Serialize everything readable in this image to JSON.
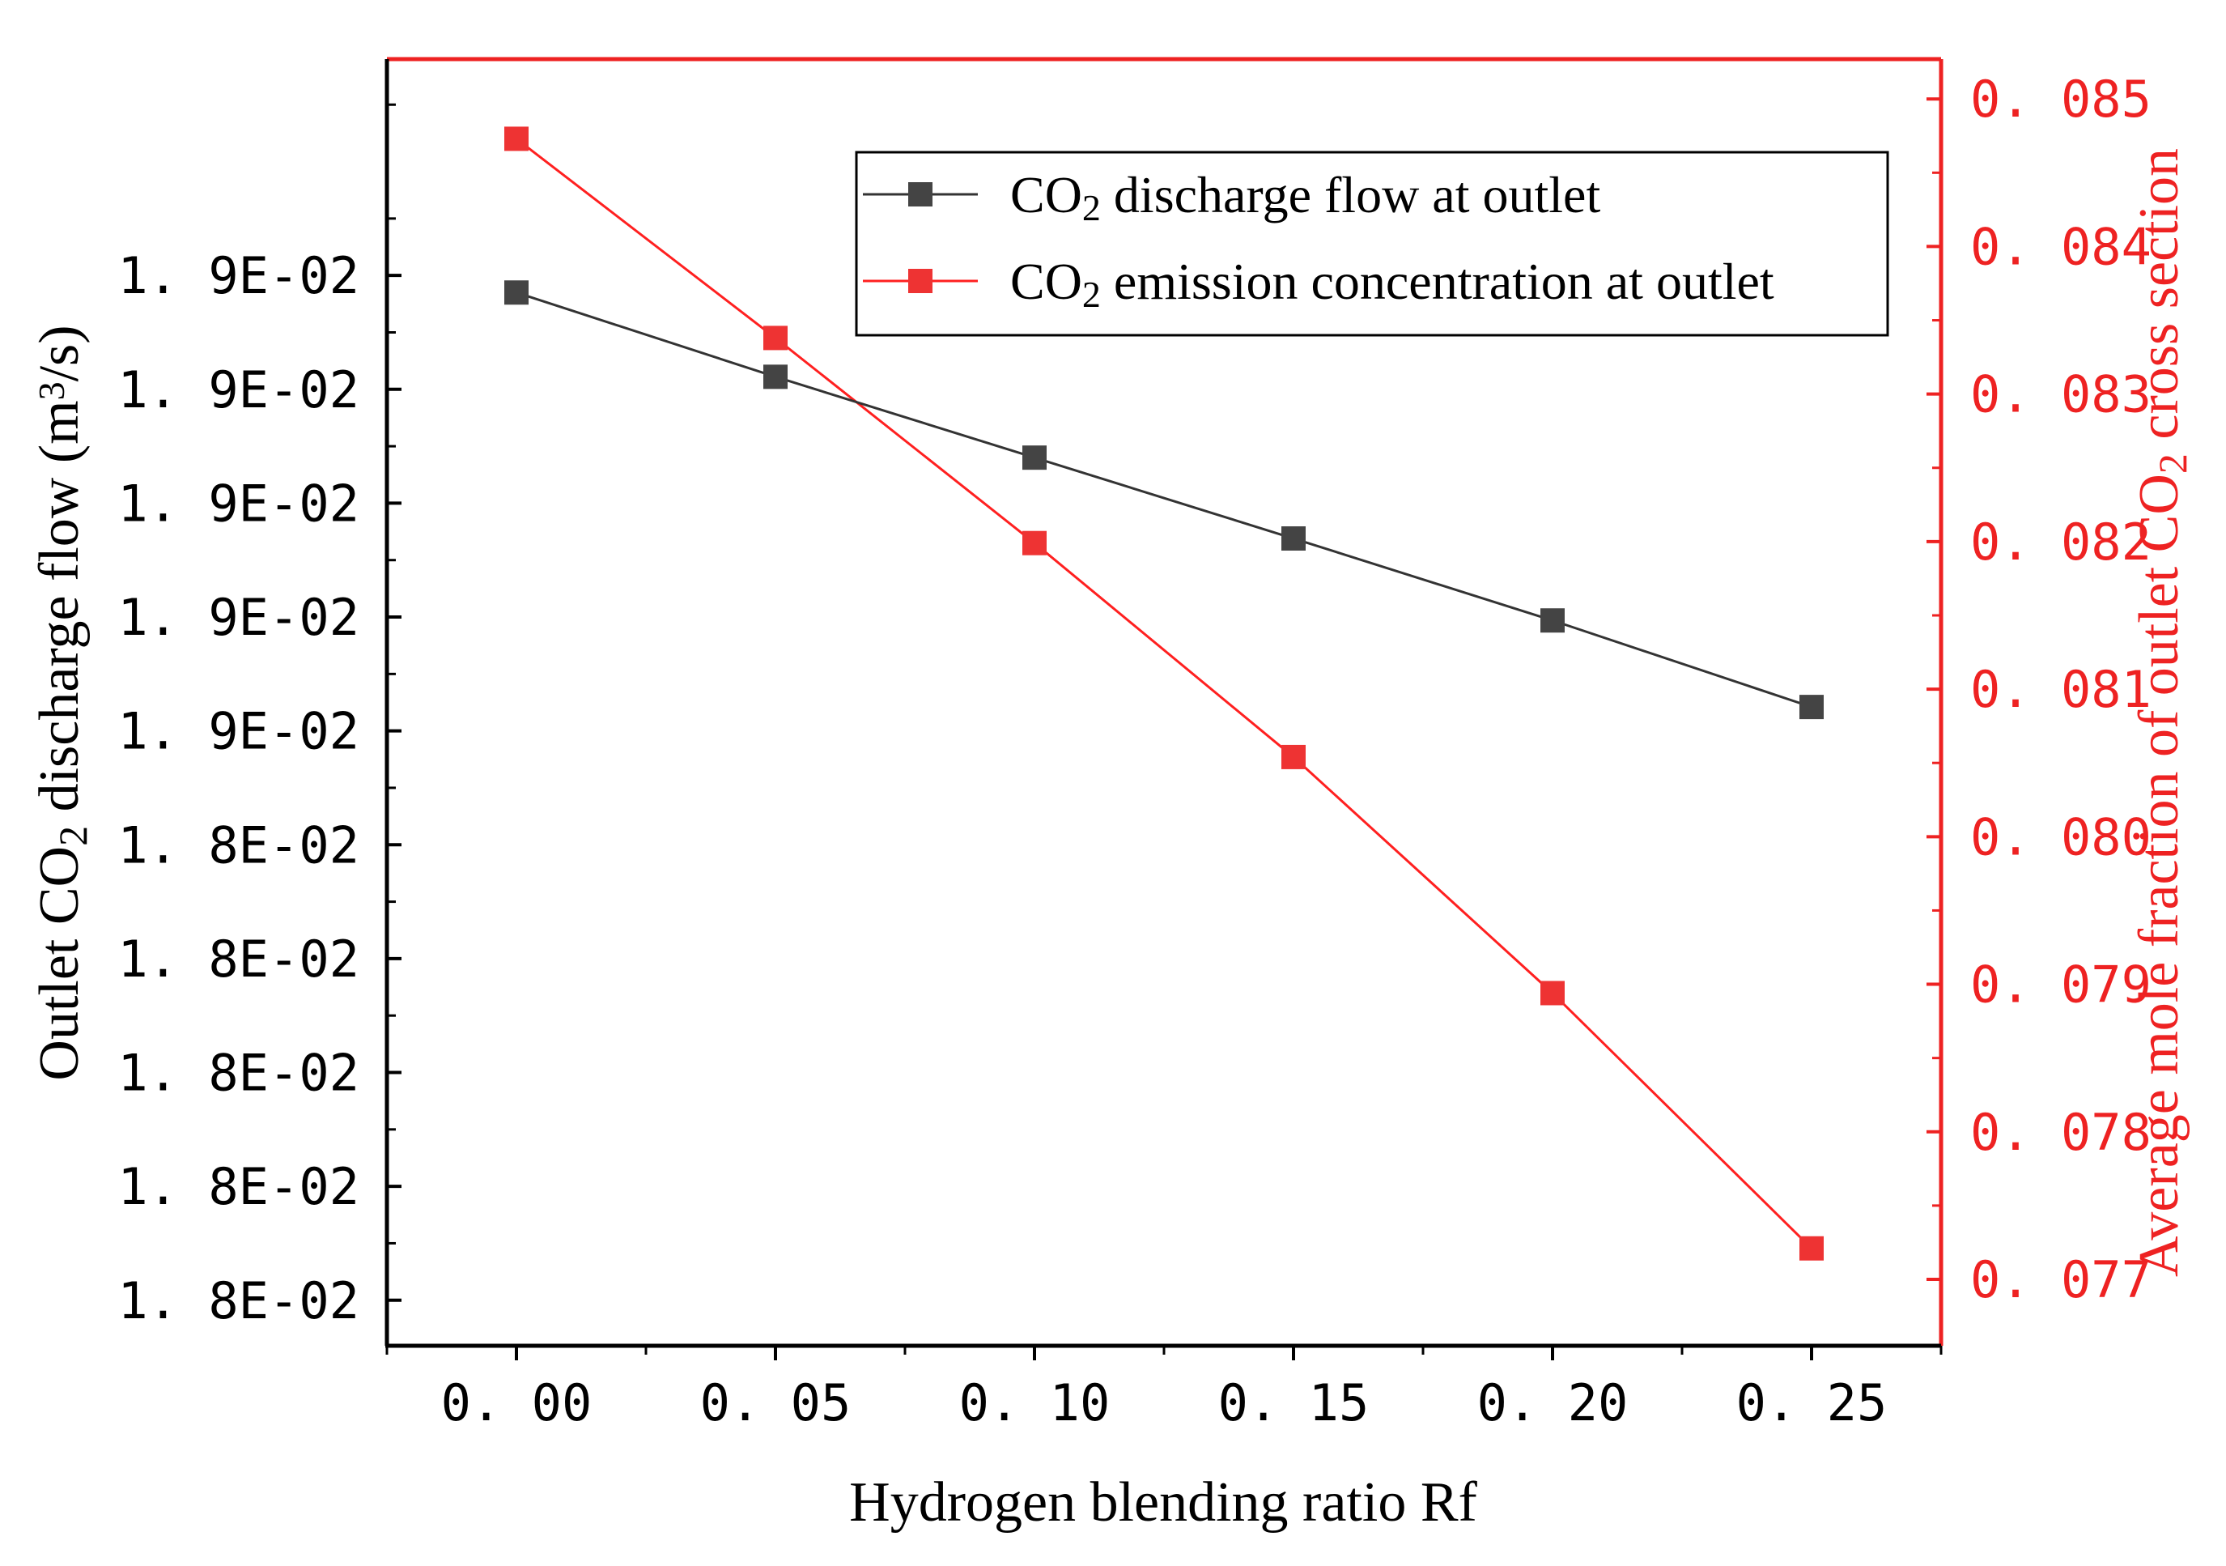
{
  "chart_data": {
    "type": "line",
    "x": [
      0.0,
      0.05,
      0.1,
      0.15,
      0.2,
      0.25
    ],
    "x_tick_labels": [
      "0. 00",
      "0. 05",
      "0. 10",
      "0. 15",
      "0. 20",
      "0. 25"
    ],
    "xlim": [
      -0.025,
      0.275
    ],
    "xlabel": "Hydrogen blending ratio Rf",
    "ylabel_left": {
      "pre": "Outlet CO",
      "sub": "2",
      "mid": " discharge flow (m",
      "sup": "3",
      "post": "/s)"
    },
    "ylabel_right": {
      "pre": "Average mole fraction of outlet CO",
      "sub": "2",
      "post": " cross section"
    },
    "y_left_ticks": [
      0.018,
      0.0181,
      0.0182,
      0.0183,
      0.0184,
      0.0185,
      0.0186,
      0.0187,
      0.0188,
      0.0189
    ],
    "y_left_tick_labels": [
      "1. 8E-02",
      "1. 8E-02",
      "1. 8E-02",
      "1. 8E-02",
      "1. 8E-02",
      "1. 9E-02",
      "1. 9E-02",
      "1. 9E-02",
      "1. 9E-02",
      "1. 9E-02"
    ],
    "y_left_lim": [
      0.01796,
      0.01909
    ],
    "y_right_ticks": [
      0.077,
      0.078,
      0.079,
      0.08,
      0.081,
      0.082,
      0.083,
      0.084,
      0.085
    ],
    "y_right_tick_labels": [
      "0. 077",
      "0. 078",
      "0. 079",
      "0. 080",
      "0. 081",
      "0. 082",
      "0. 083",
      "0. 084",
      "0. 085"
    ],
    "y_right_lim": [
      0.07655,
      0.08527
    ],
    "series": [
      {
        "name": "CO2 discharge flow at outlet",
        "label_parts": {
          "pre": "CO",
          "sub": "2",
          "post": " discharge flow at outlet"
        },
        "axis": "left",
        "color": "#444444",
        "line_color": "#333333",
        "values": [
          0.018885,
          0.018811,
          0.01874,
          0.018669,
          0.018597,
          0.018521
        ]
      },
      {
        "name": "CO2 emission concentration at outlet",
        "label_parts": {
          "pre": "CO",
          "sub": "2",
          "post": " emission concentration at outlet"
        },
        "axis": "right",
        "color": "#ee3333",
        "line_color": "#ff2020",
        "values": [
          0.08473,
          0.08338,
          0.08199,
          0.08054,
          0.07894,
          0.07721
        ]
      }
    ],
    "legend_position": "top-right",
    "colors": {
      "axis_left": "#000000",
      "axis_right": "#ee2222"
    }
  }
}
